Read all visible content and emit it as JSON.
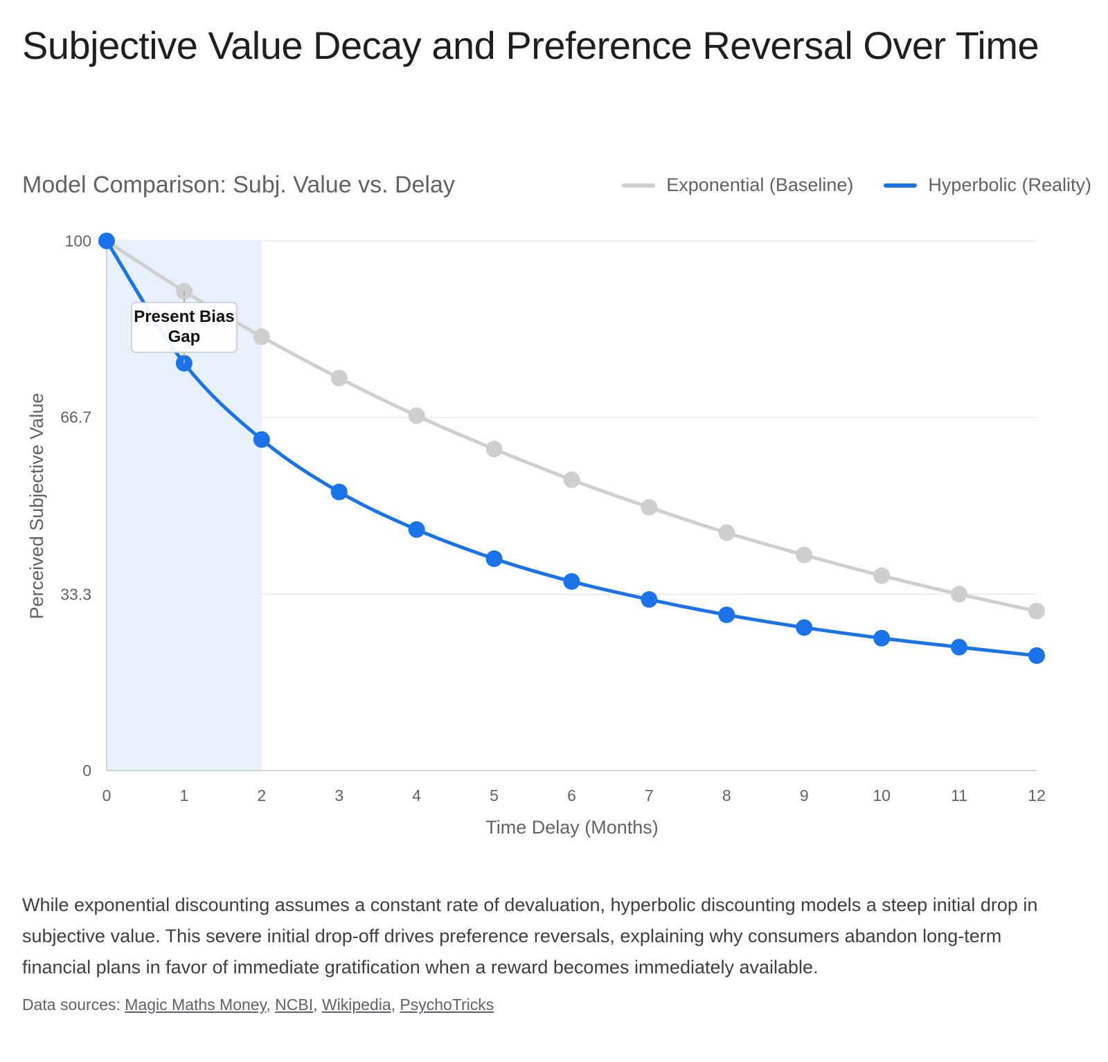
{
  "title": "Subjective Value Decay and Preference Reversal Over Time",
  "subtitle": "Model Comparison: Subj. Value vs. Delay",
  "legend": [
    {
      "label": "Exponential (Baseline)",
      "color": "#cfcfcf"
    },
    {
      "label": "Hyperbolic (Reality)",
      "color": "#1a73e8"
    }
  ],
  "chart_data": {
    "type": "line",
    "x": [
      0,
      1,
      2,
      3,
      4,
      5,
      6,
      7,
      8,
      9,
      10,
      11,
      12
    ],
    "series": [
      {
        "name": "Exponential (Baseline)",
        "color": "#cfcfcf",
        "values": [
          100,
          90.5,
          81.9,
          74.1,
          67.0,
          60.7,
          54.9,
          49.7,
          44.9,
          40.7,
          36.8,
          33.3,
          30.1
        ]
      },
      {
        "name": "Hyperbolic (Reality)",
        "color": "#1a73e8",
        "values": [
          100,
          76.9,
          62.5,
          52.6,
          45.5,
          40.0,
          35.7,
          32.3,
          29.4,
          27.0,
          25.0,
          23.3,
          21.7
        ]
      }
    ],
    "xlabel": "Time Delay (Months)",
    "ylabel": "Perceived Subjective Value",
    "xlim": [
      0,
      12
    ],
    "ylim": [
      0,
      100
    ],
    "y_ticks": [
      "0",
      "33.3",
      "66.7",
      "100"
    ],
    "y_tick_values": [
      0,
      33.3,
      66.7,
      100
    ],
    "x_ticks": [
      "0",
      "1",
      "2",
      "3",
      "4",
      "5",
      "6",
      "7",
      "8",
      "9",
      "10",
      "11",
      "12"
    ],
    "highlight_band": {
      "x_from": 0,
      "x_to": 2,
      "color": "#e8f0fc"
    },
    "annotation": {
      "lines": [
        "Present Bias",
        "Gap"
      ],
      "x": 1
    },
    "grid": true,
    "legend_position": "top-right"
  },
  "description": "While exponential discounting assumes a constant rate of devaluation, hyperbolic discounting models a steep initial drop in subjective value. This severe initial drop-off drives preference reversals, explaining why consumers abandon long-term financial plans in favor of immediate gratification when a reward becomes immediately available.",
  "sources": {
    "prefix": "Data sources:",
    "links": [
      "Magic Maths Money",
      "NCBI",
      "Wikipedia",
      "PsychoTricks"
    ]
  }
}
